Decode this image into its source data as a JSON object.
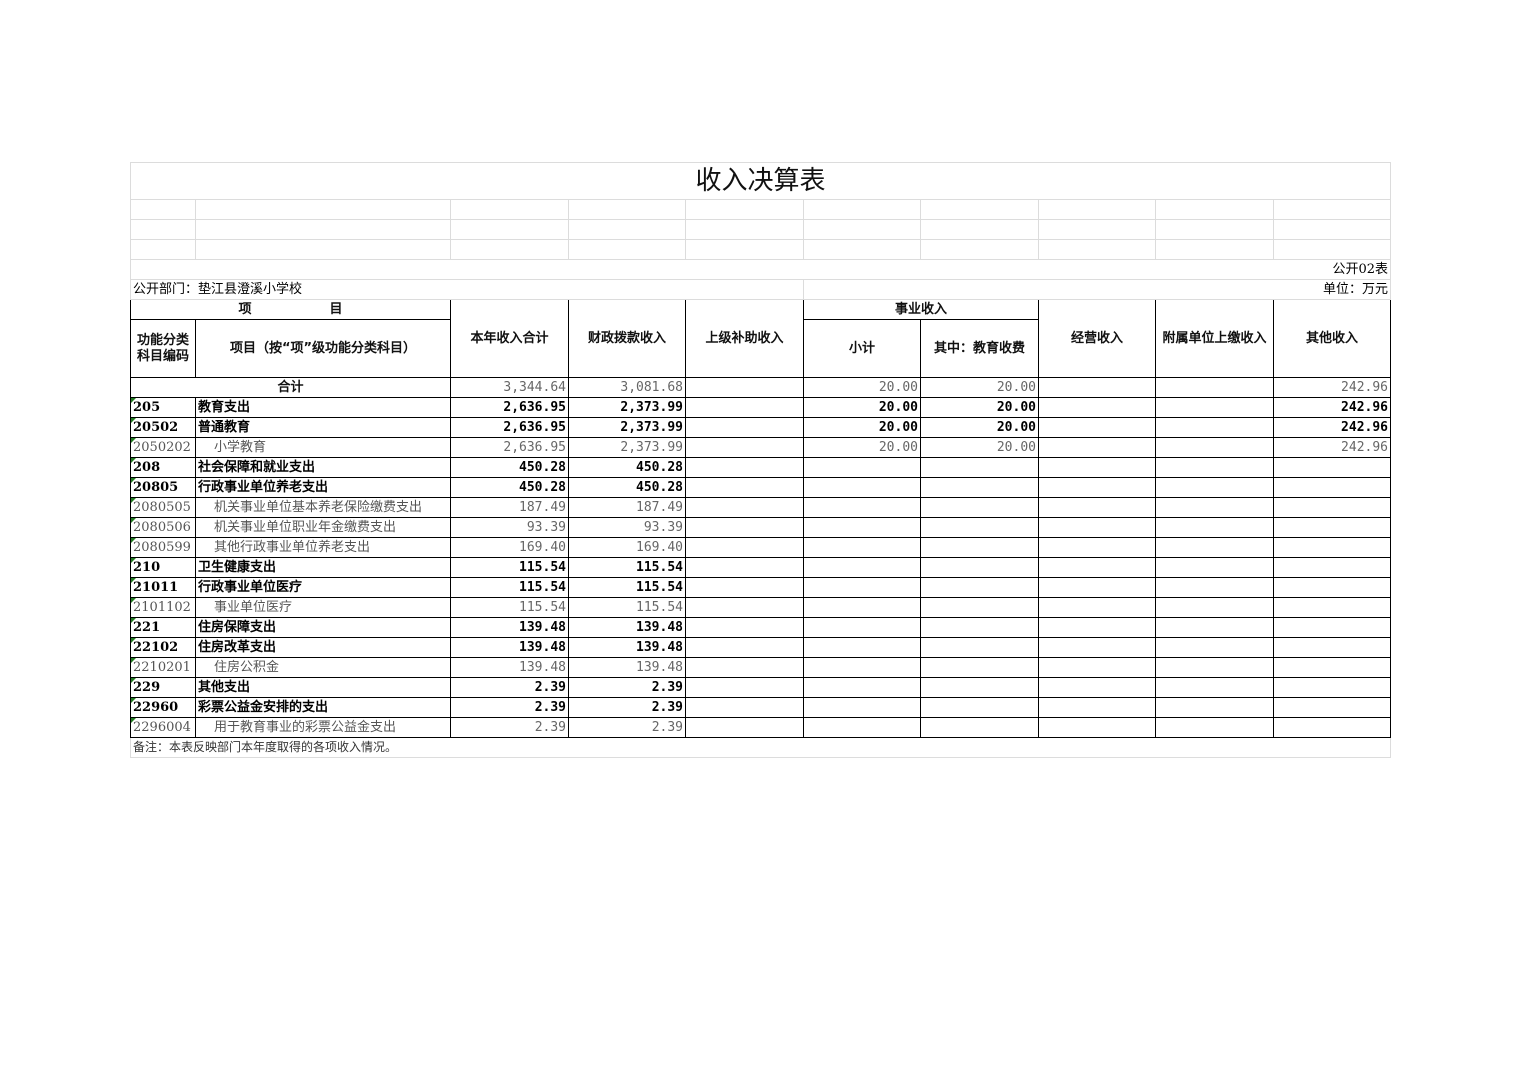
{
  "title": "收入决算表",
  "form_no": "公开02表",
  "department": "公开部门：垫江县澄溪小学校",
  "unit": "单位：万元",
  "headers": {
    "item": "项　　　　　　目",
    "code": "功能分类科目编码",
    "name": "项目（按“项”级功能分类科目）",
    "total": "本年收入合计",
    "fiscal": "财政拨款收入",
    "superior": "上级补助收入",
    "career": "事业收入",
    "subtotal": "小计",
    "edu_fee": "其中：教育收费",
    "business": "经营收入",
    "affiliated": "附属单位上缴收入",
    "other": "其他收入"
  },
  "total_row": {
    "label": "合计",
    "values": [
      "3,344.64",
      "3,081.68",
      "",
      "20.00",
      "20.00",
      "",
      "",
      "242.96"
    ]
  },
  "rows": [
    {
      "code": "205",
      "name": "教育支出",
      "level": 1,
      "values": [
        "2,636.95",
        "2,373.99",
        "",
        "20.00",
        "20.00",
        "",
        "",
        "242.96"
      ]
    },
    {
      "code": "20502",
      "name": "普通教育",
      "level": 1,
      "values": [
        "2,636.95",
        "2,373.99",
        "",
        "20.00",
        "20.00",
        "",
        "",
        "242.96"
      ]
    },
    {
      "code": "2050202",
      "name": "小学教育",
      "level": 2,
      "values": [
        "2,636.95",
        "2,373.99",
        "",
        "20.00",
        "20.00",
        "",
        "",
        "242.96"
      ]
    },
    {
      "code": "208",
      "name": "社会保障和就业支出",
      "level": 1,
      "values": [
        "450.28",
        "450.28",
        "",
        "",
        "",
        "",
        "",
        ""
      ]
    },
    {
      "code": "20805",
      "name": "行政事业单位养老支出",
      "level": 1,
      "values": [
        "450.28",
        "450.28",
        "",
        "",
        "",
        "",
        "",
        ""
      ]
    },
    {
      "code": "2080505",
      "name": "机关事业单位基本养老保险缴费支出",
      "level": 2,
      "values": [
        "187.49",
        "187.49",
        "",
        "",
        "",
        "",
        "",
        ""
      ]
    },
    {
      "code": "2080506",
      "name": "机关事业单位职业年金缴费支出",
      "level": 2,
      "values": [
        "93.39",
        "93.39",
        "",
        "",
        "",
        "",
        "",
        ""
      ]
    },
    {
      "code": "2080599",
      "name": "其他行政事业单位养老支出",
      "level": 2,
      "values": [
        "169.40",
        "169.40",
        "",
        "",
        "",
        "",
        "",
        ""
      ]
    },
    {
      "code": "210",
      "name": "卫生健康支出",
      "level": 1,
      "values": [
        "115.54",
        "115.54",
        "",
        "",
        "",
        "",
        "",
        ""
      ]
    },
    {
      "code": "21011",
      "name": "行政事业单位医疗",
      "level": 1,
      "values": [
        "115.54",
        "115.54",
        "",
        "",
        "",
        "",
        "",
        ""
      ]
    },
    {
      "code": "2101102",
      "name": "事业单位医疗",
      "level": 2,
      "values": [
        "115.54",
        "115.54",
        "",
        "",
        "",
        "",
        "",
        ""
      ]
    },
    {
      "code": "221",
      "name": "住房保障支出",
      "level": 1,
      "values": [
        "139.48",
        "139.48",
        "",
        "",
        "",
        "",
        "",
        ""
      ]
    },
    {
      "code": "22102",
      "name": "住房改革支出",
      "level": 1,
      "values": [
        "139.48",
        "139.48",
        "",
        "",
        "",
        "",
        "",
        ""
      ]
    },
    {
      "code": "2210201",
      "name": "住房公积金",
      "level": 2,
      "values": [
        "139.48",
        "139.48",
        "",
        "",
        "",
        "",
        "",
        ""
      ]
    },
    {
      "code": "229",
      "name": "其他支出",
      "level": 1,
      "values": [
        "2.39",
        "2.39",
        "",
        "",
        "",
        "",
        "",
        ""
      ]
    },
    {
      "code": "22960",
      "name": "彩票公益金安排的支出",
      "level": 1,
      "values": [
        "2.39",
        "2.39",
        "",
        "",
        "",
        "",
        "",
        ""
      ]
    },
    {
      "code": "2296004",
      "name": "用于教育事业的彩票公益金支出",
      "level": 2,
      "values": [
        "2.39",
        "2.39",
        "",
        "",
        "",
        "",
        "",
        ""
      ]
    }
  ],
  "note": "备注：本表反映部门本年度取得的各项收入情况。"
}
